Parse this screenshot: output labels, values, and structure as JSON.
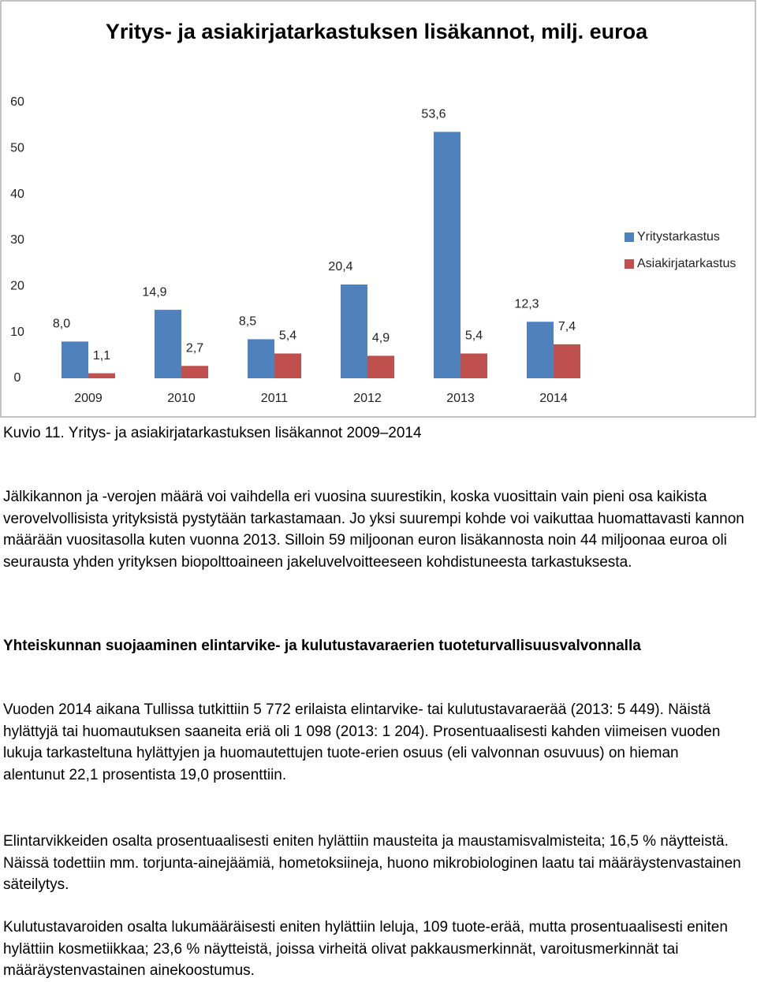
{
  "chart_data": {
    "type": "bar",
    "title": "Yritys- ja asiakirjatarkastuksen lisäkannot, milj. euroa",
    "categories": [
      "2009",
      "2010",
      "2011",
      "2012",
      "2013",
      "2014"
    ],
    "series": [
      {
        "name": "Yritystarkastus",
        "color": "#4f81bd",
        "values": [
          8.0,
          14.9,
          8.5,
          20.4,
          53.6,
          12.3
        ],
        "value_labels": [
          "8,0",
          "14,9",
          "8,5",
          "20,4",
          "53,6",
          "12,3"
        ]
      },
      {
        "name": "Asiakirjatarkastus",
        "color": "#c0504d",
        "values": [
          1.1,
          2.7,
          5.4,
          4.9,
          5.4,
          7.4
        ],
        "value_labels": [
          "1,1",
          "2,7",
          "5,4",
          "4,9",
          "5,4",
          "7,4"
        ]
      }
    ],
    "ylim": [
      0,
      60
    ],
    "yticks": [
      0,
      10,
      20,
      30,
      40,
      50,
      60
    ],
    "grid": false,
    "legend": "right"
  },
  "caption": "Kuvio 11. Yritys- ja asiakirjatarkastuksen lisäkannot 2009–2014",
  "paragraph1": "Jälkikannon ja -verojen määrä voi vaihdella eri vuosina suurestikin, koska vuosittain vain pieni osa kaikista verovelvollisista yrityksistä pystytään tarkastamaan. Jo yksi suurempi kohde voi vaikuttaa huomattavasti kannon määrään vuositasolla kuten vuonna 2013. Silloin 59 miljoonan euron lisäkannosta noin 44 miljoonaa euroa oli seurausta yhden yrityksen biopolttoaineen jakeluvelvoitteeseen kohdistuneesta tarkastuksesta.",
  "heading": "Yhteiskunnan suojaaminen elintarvike- ja kulutustavaraerien tuoteturvallisuusvalvonnalla",
  "paragraph2": "Vuoden 2014 aikana Tullissa tutkittiin 5 772 erilaista elintarvike- tai kulutustavaraerää (2013: 5 449). Näistä hylättyjä tai huomautuksen saaneita eriä oli 1 098 (2013: 1 204). Prosentuaalisesti kahden viimeisen vuoden lukuja tarkasteltuna hylättyjen ja huomautettujen tuote-erien osuus (eli valvonnan osuvuus) on hieman alentunut 22,1 prosentista 19,0 prosenttiin.",
  "paragraph3": "Elintarvikkeiden osalta prosentuaalisesti eniten hylättiin mausteita ja maustamisvalmisteita; 16,5 % näytteistä. Näissä todettiin mm. torjunta-ainejäämiä, hometoksiineja, huono mikrobiologinen laatu tai määräystenvastainen säteilytys.",
  "paragraph4": "Kulutustavaroiden osalta lukumääräisesti eniten hylättiin leluja, 109 tuote-erää, mutta prosentuaalisesti eniten hylättiin kosmetiikkaa; 23,6 % näytteistä, joissa virheitä olivat pakkausmerkinnät, varoitusmerkinnät tai määräystenvastainen ainekoostumus."
}
